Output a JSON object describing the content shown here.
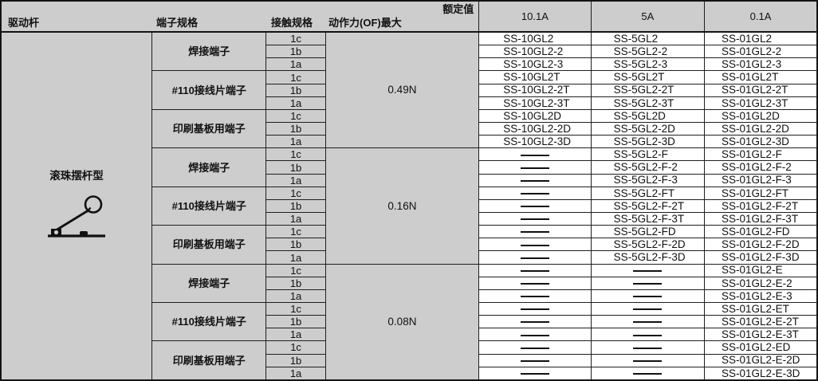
{
  "header": {
    "rated_label": "额定值",
    "col_drive": "驱动杆",
    "col_terminal": "端子规格",
    "col_contact": "接触规格",
    "col_force": "动作力(OF)最大",
    "rated_columns": [
      "10.1A",
      "5A",
      "0.1A"
    ]
  },
  "drive_lever": {
    "label": "滚珠摆杆型",
    "icon": "roller-lever-icon"
  },
  "empty_marker": "—",
  "colors": {
    "header_bg": "#cdcdcd",
    "left_section_bg": "#cdcdcd",
    "model_cell_bg": "#ffffff",
    "border": "#1f1f1f",
    "text": "#111111"
  },
  "groups": [
    {
      "force": "0.49N",
      "terminals": [
        {
          "label": "焊接端子",
          "rows": [
            {
              "contact": "1c",
              "models": [
                "SS-10GL2",
                "SS-5GL2",
                "SS-01GL2"
              ]
            },
            {
              "contact": "1b",
              "models": [
                "SS-10GL2-2",
                "SS-5GL2-2",
                "SS-01GL2-2"
              ]
            },
            {
              "contact": "1a",
              "models": [
                "SS-10GL2-3",
                "SS-5GL2-3",
                "SS-01GL2-3"
              ]
            }
          ]
        },
        {
          "label": "#110接线片端子",
          "rows": [
            {
              "contact": "1c",
              "models": [
                "SS-10GL2T",
                "SS-5GL2T",
                "SS-01GL2T"
              ]
            },
            {
              "contact": "1b",
              "models": [
                "SS-10GL2-2T",
                "SS-5GL2-2T",
                "SS-01GL2-2T"
              ]
            },
            {
              "contact": "1a",
              "models": [
                "SS-10GL2-3T",
                "SS-5GL2-3T",
                "SS-01GL2-3T"
              ]
            }
          ]
        },
        {
          "label": "印刷基板用端子",
          "rows": [
            {
              "contact": "1c",
              "models": [
                "SS-10GL2D",
                "SS-5GL2D",
                "SS-01GL2D"
              ]
            },
            {
              "contact": "1b",
              "models": [
                "SS-10GL2-2D",
                "SS-5GL2-2D",
                "SS-01GL2-2D"
              ]
            },
            {
              "contact": "1a",
              "models": [
                "SS-10GL2-3D",
                "SS-5GL2-3D",
                "SS-01GL2-3D"
              ]
            }
          ]
        }
      ]
    },
    {
      "force": "0.16N",
      "terminals": [
        {
          "label": "焊接端子",
          "rows": [
            {
              "contact": "1c",
              "models": [
                "—",
                "SS-5GL2-F",
                "SS-01GL2-F"
              ]
            },
            {
              "contact": "1b",
              "models": [
                "—",
                "SS-5GL2-F-2",
                "SS-01GL2-F-2"
              ]
            },
            {
              "contact": "1a",
              "models": [
                "—",
                "SS-5GL2-F-3",
                "SS-01GL2-F-3"
              ]
            }
          ]
        },
        {
          "label": "#110接线片端子",
          "rows": [
            {
              "contact": "1c",
              "models": [
                "—",
                "SS-5GL2-FT",
                "SS-01GL2-FT"
              ]
            },
            {
              "contact": "1b",
              "models": [
                "—",
                "SS-5GL2-F-2T",
                "SS-01GL2-F-2T"
              ]
            },
            {
              "contact": "1a",
              "models": [
                "—",
                "SS-5GL2-F-3T",
                "SS-01GL2-F-3T"
              ]
            }
          ]
        },
        {
          "label": "印刷基板用端子",
          "rows": [
            {
              "contact": "1c",
              "models": [
                "—",
                "SS-5GL2-FD",
                "SS-01GL2-FD"
              ]
            },
            {
              "contact": "1b",
              "models": [
                "—",
                "SS-5GL2-F-2D",
                "SS-01GL2-F-2D"
              ]
            },
            {
              "contact": "1a",
              "models": [
                "—",
                "SS-5GL2-F-3D",
                "SS-01GL2-F-3D"
              ]
            }
          ]
        }
      ]
    },
    {
      "force": "0.08N",
      "terminals": [
        {
          "label": "焊接端子",
          "rows": [
            {
              "contact": "1c",
              "models": [
                "—",
                "—",
                "SS-01GL2-E"
              ]
            },
            {
              "contact": "1b",
              "models": [
                "—",
                "—",
                "SS-01GL2-E-2"
              ]
            },
            {
              "contact": "1a",
              "models": [
                "—",
                "—",
                "SS-01GL2-E-3"
              ]
            }
          ]
        },
        {
          "label": "#110接线片端子",
          "rows": [
            {
              "contact": "1c",
              "models": [
                "—",
                "—",
                "SS-01GL2-ET"
              ]
            },
            {
              "contact": "1b",
              "models": [
                "—",
                "—",
                "SS-01GL2-E-2T"
              ]
            },
            {
              "contact": "1a",
              "models": [
                "—",
                "—",
                "SS-01GL2-E-3T"
              ]
            }
          ]
        },
        {
          "label": "印刷基板用端子",
          "rows": [
            {
              "contact": "1c",
              "models": [
                "—",
                "—",
                "SS-01GL2-ED"
              ]
            },
            {
              "contact": "1b",
              "models": [
                "—",
                "—",
                "SS-01GL2-E-2D"
              ]
            },
            {
              "contact": "1a",
              "models": [
                "—",
                "—",
                "SS-01GL2-E-3D"
              ]
            }
          ]
        }
      ]
    }
  ]
}
